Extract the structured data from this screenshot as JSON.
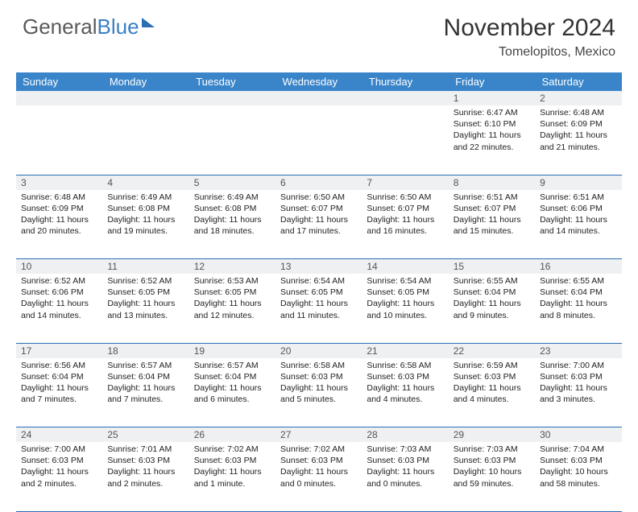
{
  "brand": {
    "part1": "General",
    "part2": "Blue"
  },
  "title": "November 2024",
  "location": "Tomelopitos, Mexico",
  "colors": {
    "header_bg": "#3a85c9",
    "header_text": "#ffffff",
    "daynum_bg": "#eef0f2",
    "border": "#2a6fb4",
    "brand_gray": "#5a5a5a",
    "brand_blue": "#3a7fc4"
  },
  "weekdays": [
    "Sunday",
    "Monday",
    "Tuesday",
    "Wednesday",
    "Thursday",
    "Friday",
    "Saturday"
  ],
  "weeks": [
    [
      null,
      null,
      null,
      null,
      null,
      {
        "n": "1",
        "sr": "Sunrise: 6:47 AM",
        "ss": "Sunset: 6:10 PM",
        "dl": "Daylight: 11 hours and 22 minutes."
      },
      {
        "n": "2",
        "sr": "Sunrise: 6:48 AM",
        "ss": "Sunset: 6:09 PM",
        "dl": "Daylight: 11 hours and 21 minutes."
      }
    ],
    [
      {
        "n": "3",
        "sr": "Sunrise: 6:48 AM",
        "ss": "Sunset: 6:09 PM",
        "dl": "Daylight: 11 hours and 20 minutes."
      },
      {
        "n": "4",
        "sr": "Sunrise: 6:49 AM",
        "ss": "Sunset: 6:08 PM",
        "dl": "Daylight: 11 hours and 19 minutes."
      },
      {
        "n": "5",
        "sr": "Sunrise: 6:49 AM",
        "ss": "Sunset: 6:08 PM",
        "dl": "Daylight: 11 hours and 18 minutes."
      },
      {
        "n": "6",
        "sr": "Sunrise: 6:50 AM",
        "ss": "Sunset: 6:07 PM",
        "dl": "Daylight: 11 hours and 17 minutes."
      },
      {
        "n": "7",
        "sr": "Sunrise: 6:50 AM",
        "ss": "Sunset: 6:07 PM",
        "dl": "Daylight: 11 hours and 16 minutes."
      },
      {
        "n": "8",
        "sr": "Sunrise: 6:51 AM",
        "ss": "Sunset: 6:07 PM",
        "dl": "Daylight: 11 hours and 15 minutes."
      },
      {
        "n": "9",
        "sr": "Sunrise: 6:51 AM",
        "ss": "Sunset: 6:06 PM",
        "dl": "Daylight: 11 hours and 14 minutes."
      }
    ],
    [
      {
        "n": "10",
        "sr": "Sunrise: 6:52 AM",
        "ss": "Sunset: 6:06 PM",
        "dl": "Daylight: 11 hours and 14 minutes."
      },
      {
        "n": "11",
        "sr": "Sunrise: 6:52 AM",
        "ss": "Sunset: 6:05 PM",
        "dl": "Daylight: 11 hours and 13 minutes."
      },
      {
        "n": "12",
        "sr": "Sunrise: 6:53 AM",
        "ss": "Sunset: 6:05 PM",
        "dl": "Daylight: 11 hours and 12 minutes."
      },
      {
        "n": "13",
        "sr": "Sunrise: 6:54 AM",
        "ss": "Sunset: 6:05 PM",
        "dl": "Daylight: 11 hours and 11 minutes."
      },
      {
        "n": "14",
        "sr": "Sunrise: 6:54 AM",
        "ss": "Sunset: 6:05 PM",
        "dl": "Daylight: 11 hours and 10 minutes."
      },
      {
        "n": "15",
        "sr": "Sunrise: 6:55 AM",
        "ss": "Sunset: 6:04 PM",
        "dl": "Daylight: 11 hours and 9 minutes."
      },
      {
        "n": "16",
        "sr": "Sunrise: 6:55 AM",
        "ss": "Sunset: 6:04 PM",
        "dl": "Daylight: 11 hours and 8 minutes."
      }
    ],
    [
      {
        "n": "17",
        "sr": "Sunrise: 6:56 AM",
        "ss": "Sunset: 6:04 PM",
        "dl": "Daylight: 11 hours and 7 minutes."
      },
      {
        "n": "18",
        "sr": "Sunrise: 6:57 AM",
        "ss": "Sunset: 6:04 PM",
        "dl": "Daylight: 11 hours and 7 minutes."
      },
      {
        "n": "19",
        "sr": "Sunrise: 6:57 AM",
        "ss": "Sunset: 6:04 PM",
        "dl": "Daylight: 11 hours and 6 minutes."
      },
      {
        "n": "20",
        "sr": "Sunrise: 6:58 AM",
        "ss": "Sunset: 6:03 PM",
        "dl": "Daylight: 11 hours and 5 minutes."
      },
      {
        "n": "21",
        "sr": "Sunrise: 6:58 AM",
        "ss": "Sunset: 6:03 PM",
        "dl": "Daylight: 11 hours and 4 minutes."
      },
      {
        "n": "22",
        "sr": "Sunrise: 6:59 AM",
        "ss": "Sunset: 6:03 PM",
        "dl": "Daylight: 11 hours and 4 minutes."
      },
      {
        "n": "23",
        "sr": "Sunrise: 7:00 AM",
        "ss": "Sunset: 6:03 PM",
        "dl": "Daylight: 11 hours and 3 minutes."
      }
    ],
    [
      {
        "n": "24",
        "sr": "Sunrise: 7:00 AM",
        "ss": "Sunset: 6:03 PM",
        "dl": "Daylight: 11 hours and 2 minutes."
      },
      {
        "n": "25",
        "sr": "Sunrise: 7:01 AM",
        "ss": "Sunset: 6:03 PM",
        "dl": "Daylight: 11 hours and 2 minutes."
      },
      {
        "n": "26",
        "sr": "Sunrise: 7:02 AM",
        "ss": "Sunset: 6:03 PM",
        "dl": "Daylight: 11 hours and 1 minute."
      },
      {
        "n": "27",
        "sr": "Sunrise: 7:02 AM",
        "ss": "Sunset: 6:03 PM",
        "dl": "Daylight: 11 hours and 0 minutes."
      },
      {
        "n": "28",
        "sr": "Sunrise: 7:03 AM",
        "ss": "Sunset: 6:03 PM",
        "dl": "Daylight: 11 hours and 0 minutes."
      },
      {
        "n": "29",
        "sr": "Sunrise: 7:03 AM",
        "ss": "Sunset: 6:03 PM",
        "dl": "Daylight: 10 hours and 59 minutes."
      },
      {
        "n": "30",
        "sr": "Sunrise: 7:04 AM",
        "ss": "Sunset: 6:03 PM",
        "dl": "Daylight: 10 hours and 58 minutes."
      }
    ]
  ]
}
